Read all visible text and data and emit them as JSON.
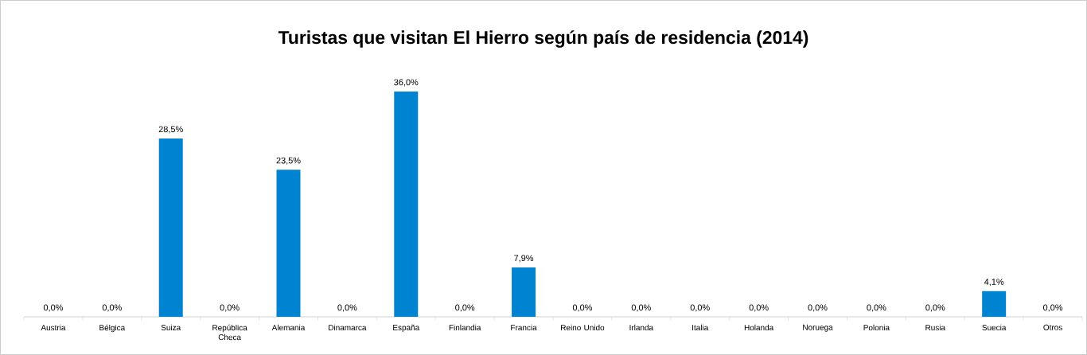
{
  "chart_data": {
    "type": "bar",
    "title": "Turistas que visitan El Hierro según país de residencia (2014)",
    "categories": [
      "Austria",
      "Bélgica",
      "Suiza",
      "República Checa",
      "Alemania",
      "Dinamarca",
      "España",
      "Finlandia",
      "Francia",
      "Reino Unido",
      "Irlanda",
      "Italia",
      "Holanda",
      "Noruega",
      "Polonia",
      "Rusia",
      "Suecia",
      "Otros"
    ],
    "values": [
      0.0,
      0.0,
      28.5,
      0.0,
      23.5,
      0.0,
      36.0,
      0.0,
      7.9,
      0.0,
      0.0,
      0.0,
      0.0,
      0.0,
      0.0,
      0.0,
      4.1,
      0.0
    ],
    "value_labels": [
      "0,0%",
      "0,0%",
      "28,5%",
      "0,0%",
      "23,5%",
      "0,0%",
      "36,0%",
      "0,0%",
      "7,9%",
      "0,0%",
      "0,0%",
      "0,0%",
      "0,0%",
      "0,0%",
      "0,0%",
      "0,0%",
      "4,1%",
      "0,0%"
    ],
    "color": "#0083d0"
  }
}
